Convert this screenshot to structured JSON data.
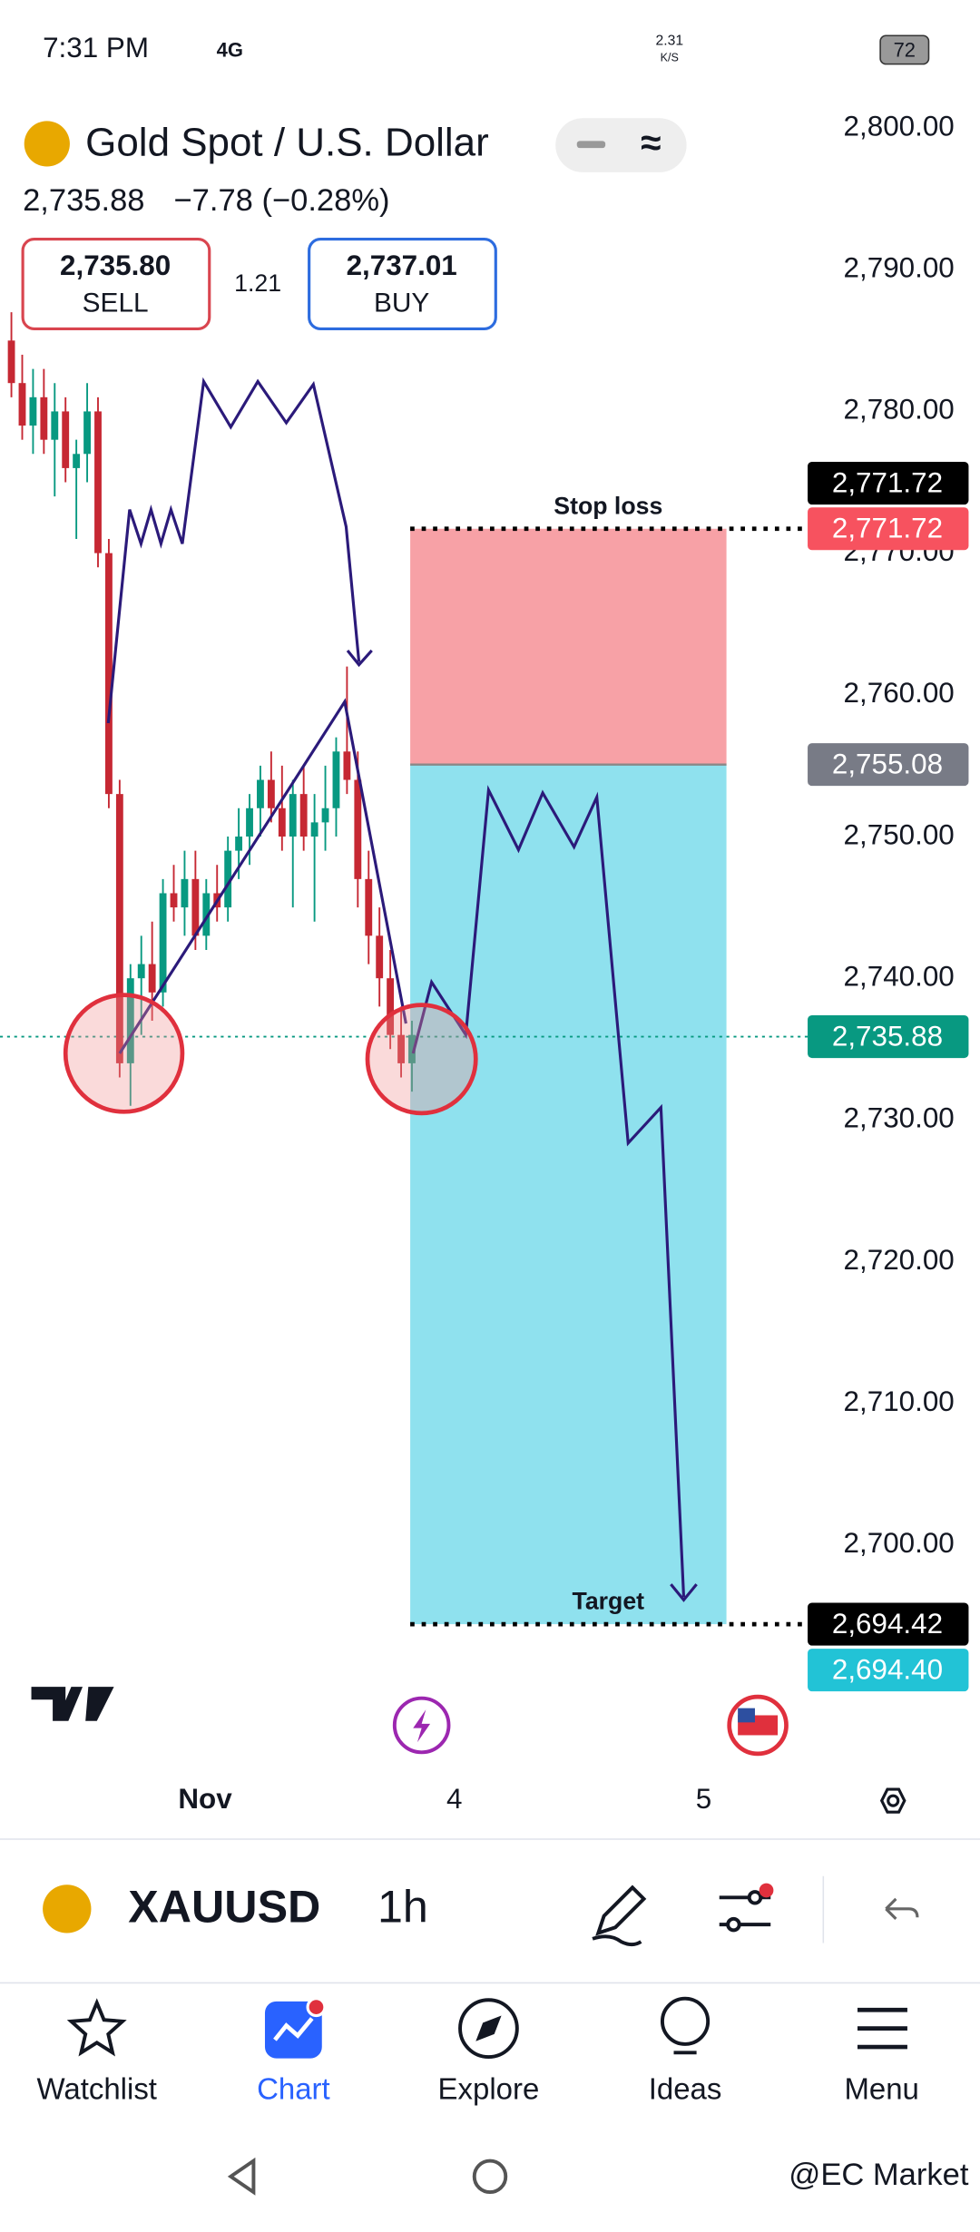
{
  "status_bar": {
    "time": "7:31 PM",
    "network": "4G",
    "speed": "2.31",
    "speed_unit": "K/S",
    "battery": "72"
  },
  "header": {
    "symbol_name": "Gold Spot / U.S. Dollar",
    "last": "2,735.88",
    "change": "−7.78 (−0.28%)",
    "sell_price": "2,735.80",
    "sell_label": "SELL",
    "spread": "1.21",
    "buy_price": "2,737.01",
    "buy_label": "BUY"
  },
  "chart_data": {
    "type": "candlestick",
    "up_color": "#089981",
    "down_color": "#c62833",
    "candles": [
      {
        "open": 2785,
        "high": 2787,
        "low": 2781,
        "close": 2782
      },
      {
        "open": 2782,
        "high": 2784,
        "low": 2778,
        "close": 2779
      },
      {
        "open": 2779,
        "high": 2783,
        "low": 2777,
        "close": 2781
      },
      {
        "open": 2781,
        "high": 2783,
        "low": 2777,
        "close": 2778
      },
      {
        "open": 2778,
        "high": 2782,
        "low": 2774,
        "close": 2780
      },
      {
        "open": 2780,
        "high": 2781,
        "low": 2775,
        "close": 2776
      },
      {
        "open": 2776,
        "high": 2778,
        "low": 2771,
        "close": 2777
      },
      {
        "open": 2777,
        "high": 2782,
        "low": 2775,
        "close": 2780
      },
      {
        "open": 2780,
        "high": 2781,
        "low": 2769,
        "close": 2770
      },
      {
        "open": 2770,
        "high": 2771,
        "low": 2752,
        "close": 2753
      },
      {
        "open": 2753,
        "high": 2754,
        "low": 2733,
        "close": 2734
      },
      {
        "open": 2734,
        "high": 2741,
        "low": 2731,
        "close": 2740
      },
      {
        "open": 2740,
        "high": 2743,
        "low": 2736,
        "close": 2741
      },
      {
        "open": 2741,
        "high": 2744,
        "low": 2737,
        "close": 2739
      },
      {
        "open": 2739,
        "high": 2747,
        "low": 2738,
        "close": 2746
      },
      {
        "open": 2746,
        "high": 2748,
        "low": 2744,
        "close": 2745
      },
      {
        "open": 2745,
        "high": 2749,
        "low": 2743,
        "close": 2747
      },
      {
        "open": 2747,
        "high": 2749,
        "low": 2742,
        "close": 2743
      },
      {
        "open": 2743,
        "high": 2747,
        "low": 2742,
        "close": 2746
      },
      {
        "open": 2746,
        "high": 2748,
        "low": 2744,
        "close": 2745
      },
      {
        "open": 2745,
        "high": 2750,
        "low": 2744,
        "close": 2749
      },
      {
        "open": 2749,
        "high": 2752,
        "low": 2747,
        "close": 2750
      },
      {
        "open": 2750,
        "high": 2753,
        "low": 2748,
        "close": 2752
      },
      {
        "open": 2752,
        "high": 2755,
        "low": 2750,
        "close": 2754
      },
      {
        "open": 2754,
        "high": 2756,
        "low": 2751,
        "close": 2752
      },
      {
        "open": 2752,
        "high": 2755,
        "low": 2749,
        "close": 2750
      },
      {
        "open": 2750,
        "high": 2754,
        "low": 2745,
        "close": 2753
      },
      {
        "open": 2753,
        "high": 2755,
        "low": 2749,
        "close": 2750
      },
      {
        "open": 2750,
        "high": 2753,
        "low": 2744,
        "close": 2751
      },
      {
        "open": 2751,
        "high": 2755,
        "low": 2749,
        "close": 2752
      },
      {
        "open": 2752,
        "high": 2757,
        "low": 2750,
        "close": 2756
      },
      {
        "open": 2756,
        "high": 2762,
        "low": 2753,
        "close": 2754
      },
      {
        "open": 2754,
        "high": 2756,
        "low": 2745,
        "close": 2747
      },
      {
        "open": 2747,
        "high": 2749,
        "low": 2741,
        "close": 2743
      },
      {
        "open": 2743,
        "high": 2745,
        "low": 2738,
        "close": 2740
      },
      {
        "open": 2740,
        "high": 2742,
        "low": 2735,
        "close": 2736
      },
      {
        "open": 2736,
        "high": 2738,
        "low": 2733,
        "close": 2734
      },
      {
        "open": 2734,
        "high": 2737,
        "low": 2732,
        "close": 2736
      }
    ],
    "ylim": [
      2690,
      2802
    ],
    "yticks": [
      {
        "value": 2700,
        "label": "2,700.00"
      },
      {
        "value": 2710,
        "label": "2,710.00"
      },
      {
        "value": 2720,
        "label": "2,720.00"
      },
      {
        "value": 2730,
        "label": "2,730.00"
      },
      {
        "value": 2740,
        "label": "2,740.00"
      },
      {
        "value": 2750,
        "label": "2,750.00"
      },
      {
        "value": 2760,
        "label": "2,760.00"
      },
      {
        "value": 2770,
        "label": "2,770.00"
      },
      {
        "value": 2780,
        "label": "2,780.00"
      },
      {
        "value": 2790,
        "label": "2,790.00"
      },
      {
        "value": 2800,
        "label": "2,800.00"
      }
    ],
    "price_tags": [
      {
        "value": 2771.72,
        "label": "2,771.72",
        "color": "#000000"
      },
      {
        "value": 2771.72,
        "label": "2,771.72",
        "color": "#f7525f"
      },
      {
        "value": 2755.08,
        "label": "2,755.08",
        "color": "#787b86"
      },
      {
        "value": 2735.88,
        "label": "2,735.88",
        "color": "#089981"
      },
      {
        "value": 2694.42,
        "label": "2,694.42",
        "color": "#000000"
      },
      {
        "value": 2694.4,
        "label": "2,694.40",
        "color": "#22c3d6"
      }
    ],
    "position": {
      "stop": 2771.72,
      "entry": 2755.08,
      "target": 2694.42,
      "stop_label": "Stop loss",
      "target_label": "Target",
      "loss_color": "#f7a1a6",
      "profit_color": "#8fe1ee"
    },
    "x_labels": [
      "Nov",
      "4",
      "5"
    ]
  },
  "toolbar": {
    "symbol": "XAUUSD",
    "interval": "1h"
  },
  "nav": [
    "Watchlist",
    "Chart",
    "Explore",
    "Ideas",
    "Menu"
  ],
  "watermark": "@EC Market"
}
